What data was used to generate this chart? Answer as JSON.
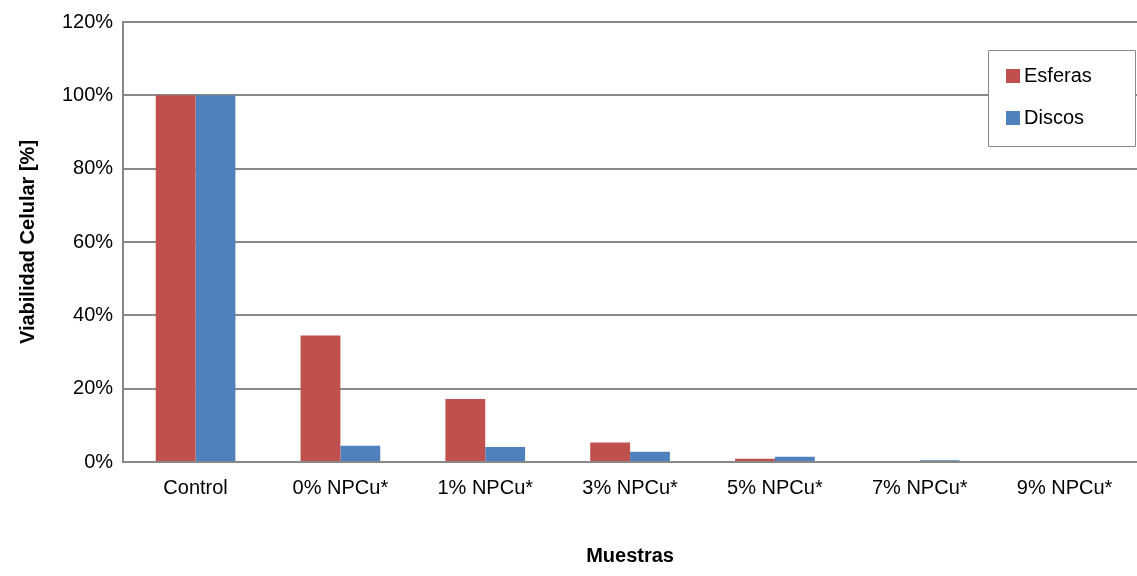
{
  "chart_data": {
    "type": "bar",
    "xlabel": "Muestras",
    "ylabel": "Viabilidad Celular [%]",
    "categories": [
      "Control",
      "0% NPCu*",
      "1% NPCu*",
      "3% NPCu*",
      "5% NPCu*",
      "7% NPCu*",
      "9% NPCu*"
    ],
    "series": [
      {
        "name": "Esferas",
        "color": "#c0504d",
        "values": [
          100,
          34.5,
          17.2,
          5.3,
          0.9,
          0,
          0
        ]
      },
      {
        "name": "Discos",
        "color": "#4f81bd",
        "values": [
          100,
          4.4,
          4.1,
          2.8,
          1.4,
          0.5,
          0.3
        ]
      }
    ],
    "ylim": [
      0,
      120
    ],
    "yticks": [
      {
        "value": 0,
        "label": "0%"
      },
      {
        "value": 20,
        "label": "20%"
      },
      {
        "value": 40,
        "label": "40%"
      },
      {
        "value": 60,
        "label": "60%"
      },
      {
        "value": 80,
        "label": "80%"
      },
      {
        "value": 100,
        "label": "100%"
      },
      {
        "value": 120,
        "label": "120%"
      }
    ],
    "grid": "y",
    "legend": "top right"
  }
}
